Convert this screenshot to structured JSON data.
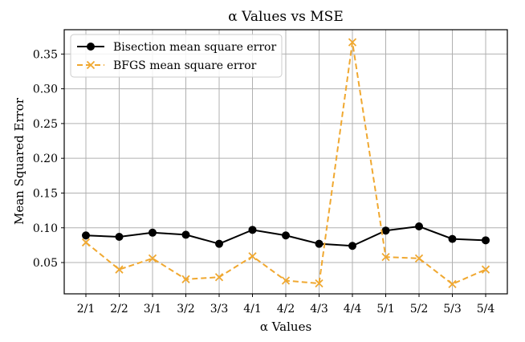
{
  "chart_data": {
    "type": "line",
    "title": "α Values vs MSE",
    "xlabel": "α Values",
    "ylabel": "Mean Squared Error",
    "categories": [
      "2/1",
      "2/2",
      "3/1",
      "3/2",
      "3/3",
      "4/1",
      "4/2",
      "4/3",
      "4/4",
      "5/1",
      "5/2",
      "5/3",
      "5/4"
    ],
    "yticks": [
      "0.05",
      "0.10",
      "0.15",
      "0.20",
      "0.25",
      "0.30",
      "0.35"
    ],
    "ylim": [
      0.005,
      0.385
    ],
    "grid": true,
    "legend_position": "top-left",
    "series": [
      {
        "name": "Bisection mean square error",
        "color": "#000000",
        "line_style": "solid",
        "marker": "circle",
        "values": [
          0.089,
          0.087,
          0.093,
          0.09,
          0.077,
          0.097,
          0.089,
          0.077,
          0.074,
          0.096,
          0.102,
          0.084,
          0.082
        ]
      },
      {
        "name": "BFGS mean square error",
        "color": "#f0a830",
        "line_style": "dashed",
        "marker": "x",
        "values": [
          0.079,
          0.04,
          0.056,
          0.026,
          0.029,
          0.059,
          0.024,
          0.02,
          0.367,
          0.058,
          0.056,
          0.019,
          0.04
        ]
      }
    ]
  }
}
